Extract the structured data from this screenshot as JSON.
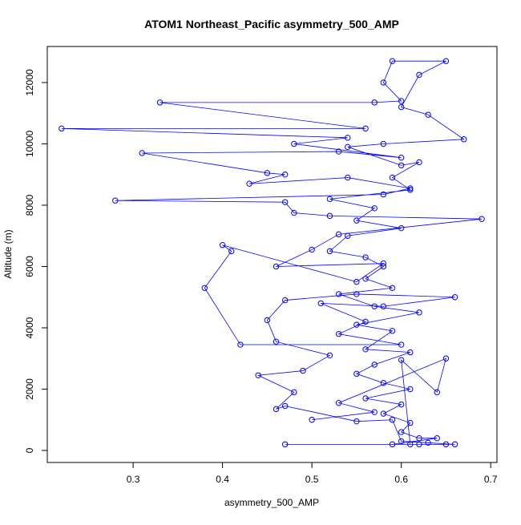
{
  "chart_data": {
    "type": "line",
    "title": "ATOM1 Northeast_Pacific asymmetry_500_AMP",
    "xlabel": "asymmetry_500_AMP",
    "ylabel": "Altitude (m)",
    "color": "#0000ff",
    "x": [
      0.47,
      0.62,
      0.65,
      0.66,
      0.63,
      0.6,
      0.59,
      0.55,
      0.47,
      0.46,
      0.48,
      0.44,
      0.49,
      0.52,
      0.46,
      0.45,
      0.47,
      0.55,
      0.66,
      0.58,
      0.51,
      0.56,
      0.53,
      0.6,
      0.42,
      0.38,
      0.41,
      0.4,
      0.55,
      0.58,
      0.46,
      0.5,
      0.53,
      0.69,
      0.52,
      0.48,
      0.47,
      0.28,
      0.58,
      0.61,
      0.54,
      0.43,
      0.47,
      0.45,
      0.31,
      0.53,
      0.6,
      0.48,
      0.54,
      0.22,
      0.56,
      0.33,
      0.57,
      0.6,
      0.58,
      0.59,
      0.65,
      0.62,
      0.6,
      0.63,
      0.67,
      0.58,
      0.54,
      0.6,
      0.62,
      0.59,
      0.61,
      0.52,
      0.57,
      0.55,
      0.6,
      0.54,
      0.52,
      0.56,
      0.58,
      0.56,
      0.59,
      0.53,
      0.57,
      0.62,
      0.55,
      0.59,
      0.56,
      0.61,
      0.57,
      0.55,
      0.58,
      0.61,
      0.56,
      0.6,
      0.58,
      0.61,
      0.6,
      0.62,
      0.64,
      0.59,
      0.61,
      0.6,
      0.64,
      0.65,
      0.53,
      0.57,
      0.5
    ],
    "values": [
      200,
      200,
      200,
      200,
      250,
      300,
      1000,
      950,
      1450,
      1350,
      1900,
      2450,
      2600,
      3100,
      3550,
      4250,
      4900,
      5100,
      5000,
      4700,
      4800,
      4200,
      3800,
      3450,
      3450,
      5300,
      6500,
      6700,
      5500,
      6100,
      6000,
      6550,
      7050,
      7550,
      7650,
      7750,
      8100,
      8150,
      8350,
      8550,
      8900,
      8700,
      9000,
      9050,
      9700,
      9750,
      9550,
      10000,
      10200,
      10500,
      10500,
      11350,
      11350,
      11400,
      12000,
      12700,
      12700,
      12250,
      11200,
      10950,
      10150,
      10000,
      9900,
      9300,
      9400,
      8900,
      8500,
      8200,
      7900,
      7500,
      7250,
      7000,
      6500,
      6300,
      6000,
      5600,
      5300,
      5100,
      4700,
      4500,
      4100,
      3900,
      3300,
      3200,
      2800,
      2500,
      2200,
      2000,
      1700,
      1500,
      1200,
      900,
      600,
      400,
      400,
      200,
      200,
      2950,
      1900,
      3000,
      1550,
      1250,
      1000
    ],
    "xlim": [
      0.204,
      0.707
    ],
    "ylim": [
      -392,
      13176
    ],
    "xticks": [
      0.3,
      0.4,
      0.5,
      0.6,
      0.7
    ],
    "yticks": [
      0,
      2000,
      4000,
      6000,
      8000,
      10000,
      12000
    ]
  }
}
